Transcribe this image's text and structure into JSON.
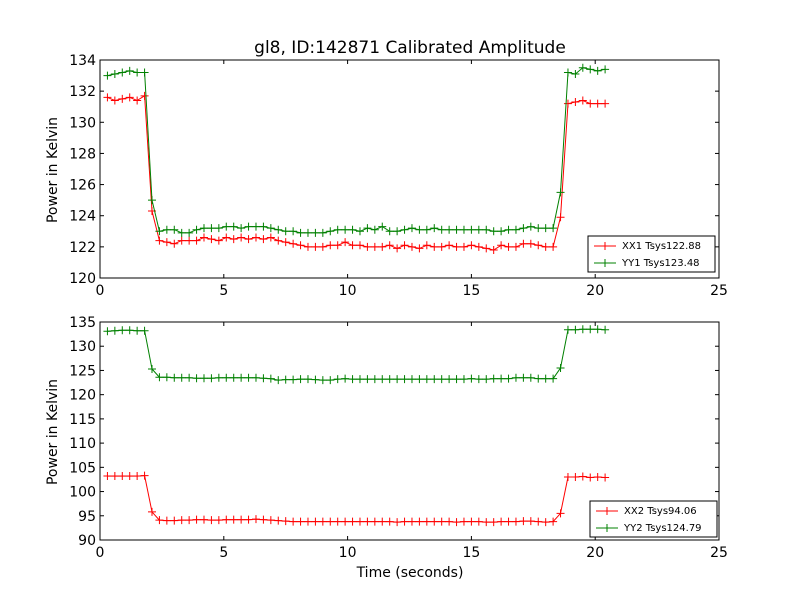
{
  "chart_data": [
    {
      "type": "line",
      "title": "gl8, ID:142871 Calibrated Amplitude",
      "xlabel": "",
      "ylabel": "Power in Kelvin",
      "xlim": [
        0,
        25
      ],
      "ylim": [
        120,
        134
      ],
      "xticks": [
        0,
        5,
        10,
        15,
        20,
        25
      ],
      "yticks": [
        120,
        122,
        124,
        126,
        128,
        130,
        132,
        134
      ],
      "legend_position": "lower-right",
      "x": [
        0.3,
        0.6,
        0.9,
        1.2,
        1.5,
        1.8,
        2.1,
        2.4,
        2.7,
        3.0,
        3.3,
        3.6,
        3.9,
        4.2,
        4.5,
        4.8,
        5.1,
        5.4,
        5.7,
        6.0,
        6.3,
        6.6,
        6.9,
        7.2,
        7.5,
        7.8,
        8.1,
        8.4,
        8.7,
        9.0,
        9.3,
        9.6,
        9.9,
        10.2,
        10.5,
        10.8,
        11.1,
        11.4,
        11.7,
        12.0,
        12.3,
        12.6,
        12.9,
        13.2,
        13.5,
        13.8,
        14.1,
        14.4,
        14.7,
        15.0,
        15.3,
        15.6,
        15.9,
        16.2,
        16.5,
        16.8,
        17.1,
        17.4,
        17.7,
        18.0,
        18.3,
        18.6,
        18.9,
        19.2,
        19.5,
        19.8,
        20.1,
        20.4
      ],
      "series": [
        {
          "name": "XX1 Tsys122.88",
          "color": "#ff0000",
          "values": [
            131.6,
            131.4,
            131.5,
            131.6,
            131.4,
            131.7,
            124.3,
            122.4,
            122.3,
            122.2,
            122.4,
            122.4,
            122.4,
            122.6,
            122.5,
            122.4,
            122.6,
            122.5,
            122.6,
            122.5,
            122.6,
            122.5,
            122.6,
            122.4,
            122.3,
            122.2,
            122.1,
            122.0,
            122.0,
            122.0,
            122.1,
            122.1,
            122.3,
            122.1,
            122.1,
            122.0,
            122.0,
            122.0,
            122.1,
            121.9,
            122.1,
            122.0,
            121.9,
            122.1,
            122.0,
            122.0,
            122.1,
            122.0,
            122.0,
            122.1,
            122.0,
            121.9,
            121.8,
            122.1,
            122.0,
            122.0,
            122.2,
            122.2,
            122.1,
            122.0,
            122.0,
            123.9,
            131.2,
            131.3,
            131.4,
            131.2,
            131.2,
            131.2
          ]
        },
        {
          "name": "YY1 Tsys123.48",
          "color": "#008000",
          "values": [
            133.0,
            133.1,
            133.2,
            133.3,
            133.2,
            133.2,
            125.0,
            123.0,
            123.1,
            123.1,
            122.9,
            122.9,
            123.1,
            123.2,
            123.2,
            123.2,
            123.3,
            123.3,
            123.2,
            123.3,
            123.3,
            123.3,
            123.2,
            123.1,
            123.0,
            123.0,
            122.9,
            122.9,
            122.9,
            122.9,
            123.0,
            123.1,
            123.1,
            123.1,
            123.0,
            123.2,
            123.1,
            123.3,
            123.0,
            123.0,
            123.1,
            123.2,
            123.1,
            123.1,
            123.2,
            123.1,
            123.1,
            123.1,
            123.1,
            123.1,
            123.1,
            123.1,
            123.0,
            123.0,
            123.1,
            123.1,
            123.2,
            123.3,
            123.2,
            123.2,
            123.2,
            125.5,
            133.2,
            133.1,
            133.5,
            133.4,
            133.3,
            133.4
          ]
        }
      ]
    },
    {
      "type": "line",
      "title": "",
      "xlabel": "Time (seconds)",
      "ylabel": "Power in Kelvin",
      "xlim": [
        0,
        25
      ],
      "ylim": [
        90,
        135
      ],
      "xticks": [
        0,
        5,
        10,
        15,
        20,
        25
      ],
      "yticks": [
        90,
        95,
        100,
        105,
        110,
        115,
        120,
        125,
        130,
        135
      ],
      "legend_position": "lower-right",
      "x": [
        0.3,
        0.6,
        0.9,
        1.2,
        1.5,
        1.8,
        2.1,
        2.4,
        2.7,
        3.0,
        3.3,
        3.6,
        3.9,
        4.2,
        4.5,
        4.8,
        5.1,
        5.4,
        5.7,
        6.0,
        6.3,
        6.6,
        6.9,
        7.2,
        7.5,
        7.8,
        8.1,
        8.4,
        8.7,
        9.0,
        9.3,
        9.6,
        9.9,
        10.2,
        10.5,
        10.8,
        11.1,
        11.4,
        11.7,
        12.0,
        12.3,
        12.6,
        12.9,
        13.2,
        13.5,
        13.8,
        14.1,
        14.4,
        14.7,
        15.0,
        15.3,
        15.6,
        15.9,
        16.2,
        16.5,
        16.8,
        17.1,
        17.4,
        17.7,
        18.0,
        18.3,
        18.6,
        18.9,
        19.2,
        19.5,
        19.8,
        20.1,
        20.4
      ],
      "series": [
        {
          "name": "XX2 Tsys94.06",
          "color": "#ff0000",
          "values": [
            103.2,
            103.2,
            103.2,
            103.2,
            103.2,
            103.3,
            95.8,
            94.1,
            94.0,
            94.0,
            94.1,
            94.1,
            94.2,
            94.2,
            94.1,
            94.1,
            94.2,
            94.2,
            94.2,
            94.2,
            94.3,
            94.2,
            94.1,
            94.0,
            93.9,
            93.8,
            93.8,
            93.8,
            93.8,
            93.8,
            93.8,
            93.8,
            93.8,
            93.8,
            93.8,
            93.8,
            93.8,
            93.8,
            93.8,
            93.7,
            93.8,
            93.8,
            93.8,
            93.8,
            93.8,
            93.8,
            93.8,
            93.7,
            93.8,
            93.8,
            93.8,
            93.7,
            93.7,
            93.8,
            93.8,
            93.8,
            93.9,
            93.9,
            93.8,
            93.7,
            93.8,
            95.5,
            103.0,
            103.0,
            103.1,
            102.9,
            103.0,
            102.9
          ]
        },
        {
          "name": "YY2 Tsys124.79",
          "color": "#008000",
          "values": [
            133.1,
            133.2,
            133.3,
            133.3,
            133.2,
            133.2,
            125.3,
            123.6,
            123.6,
            123.5,
            123.5,
            123.5,
            123.4,
            123.4,
            123.4,
            123.5,
            123.5,
            123.5,
            123.5,
            123.5,
            123.5,
            123.4,
            123.3,
            123.0,
            123.1,
            123.1,
            123.2,
            123.2,
            123.1,
            123.0,
            123.0,
            123.2,
            123.3,
            123.2,
            123.2,
            123.2,
            123.2,
            123.2,
            123.2,
            123.2,
            123.2,
            123.2,
            123.2,
            123.2,
            123.2,
            123.2,
            123.2,
            123.2,
            123.2,
            123.3,
            123.2,
            123.2,
            123.3,
            123.3,
            123.3,
            123.5,
            123.5,
            123.5,
            123.3,
            123.3,
            123.3,
            125.5,
            133.4,
            133.4,
            133.5,
            133.5,
            133.5,
            133.4
          ]
        }
      ]
    }
  ]
}
